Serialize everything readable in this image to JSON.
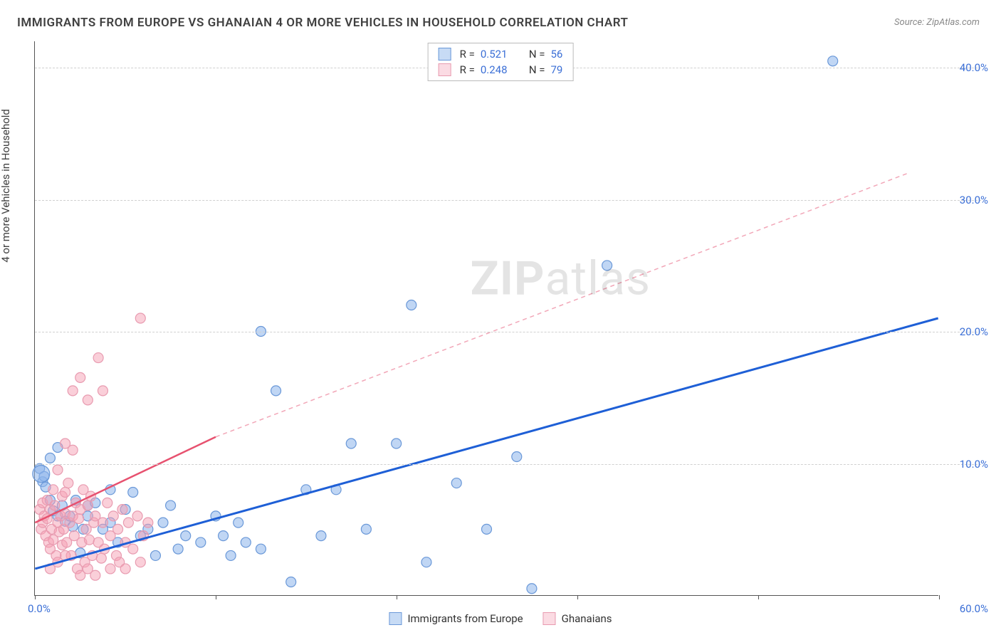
{
  "chart": {
    "title": "IMMIGRANTS FROM EUROPE VS GHANAIAN 4 OR MORE VEHICLES IN HOUSEHOLD CORRELATION CHART",
    "source": "Source: ZipAtlas.com",
    "y_axis_label": "4 or more Vehicles in Household",
    "watermark_bold": "ZIP",
    "watermark_light": "atlas",
    "type": "scatter",
    "xlim": [
      0,
      60
    ],
    "ylim": [
      0,
      42
    ],
    "x_origin_label": "0.0%",
    "x_max_label": "60.0%",
    "x_ticks": [
      0,
      12,
      24,
      36,
      48,
      60
    ],
    "y_gridlines": [
      {
        "value": 10,
        "label": "10.0%"
      },
      {
        "value": 20,
        "label": "20.0%"
      },
      {
        "value": 30,
        "label": "30.0%"
      },
      {
        "value": 40,
        "label": "40.0%"
      }
    ],
    "grid_color": "#d0d0d0",
    "axis_color": "#555555",
    "tick_label_color": "#3b6fd6",
    "background_color": "#ffffff",
    "title_fontsize": 17,
    "label_fontsize": 15,
    "series": [
      {
        "name": "Immigrants from Europe",
        "label": "Immigrants from Europe",
        "color_fill": "rgba(140,180,235,0.55)",
        "color_stroke": "#6a98d8",
        "swatch_fill": "#c7dbf5",
        "swatch_border": "#6a98d8",
        "marker_r": 7,
        "R": "0.521",
        "N": "56",
        "trend": {
          "x1": 0,
          "y1": 2.0,
          "x2": 60,
          "y2": 21.0,
          "color": "#1e5fd6",
          "width": 3,
          "dash": "none"
        },
        "trend_dash_extension": null,
        "points": [
          [
            0.3,
            9.6
          ],
          [
            0.5,
            8.6
          ],
          [
            0.6,
            9.0
          ],
          [
            0.7,
            8.2
          ],
          [
            1.0,
            7.2
          ],
          [
            1.0,
            10.4
          ],
          [
            1.2,
            6.4
          ],
          [
            1.5,
            6.0
          ],
          [
            1.8,
            6.8
          ],
          [
            2.0,
            5.6
          ],
          [
            2.3,
            6.0
          ],
          [
            2.5,
            5.2
          ],
          [
            2.7,
            7.2
          ],
          [
            3.0,
            3.2
          ],
          [
            3.2,
            5.0
          ],
          [
            3.5,
            6.8
          ],
          [
            3.5,
            6.0
          ],
          [
            4.0,
            7.0
          ],
          [
            4.5,
            5.0
          ],
          [
            5.0,
            8.0
          ],
          [
            5.0,
            5.5
          ],
          [
            5.5,
            4.0
          ],
          [
            6.0,
            6.5
          ],
          [
            6.5,
            7.8
          ],
          [
            7.0,
            4.5
          ],
          [
            7.5,
            5.0
          ],
          [
            8.0,
            3.0
          ],
          [
            8.5,
            5.5
          ],
          [
            9.0,
            6.8
          ],
          [
            9.5,
            3.5
          ],
          [
            10.0,
            4.5
          ],
          [
            11.0,
            4.0
          ],
          [
            12.0,
            6.0
          ],
          [
            12.5,
            4.5
          ],
          [
            13.0,
            3.0
          ],
          [
            13.5,
            5.5
          ],
          [
            14.0,
            4.0
          ],
          [
            15.0,
            3.5
          ],
          [
            15.0,
            20.0
          ],
          [
            16.0,
            15.5
          ],
          [
            17.0,
            1.0
          ],
          [
            18.0,
            8.0
          ],
          [
            19.0,
            4.5
          ],
          [
            20.0,
            8.0
          ],
          [
            21.0,
            11.5
          ],
          [
            22.0,
            5.0
          ],
          [
            24.0,
            11.5
          ],
          [
            25.0,
            22.0
          ],
          [
            26.0,
            2.5
          ],
          [
            28.0,
            8.5
          ],
          [
            30.0,
            5.0
          ],
          [
            32.0,
            10.5
          ],
          [
            33.0,
            0.5
          ],
          [
            38.0,
            25.0
          ],
          [
            1.5,
            11.2
          ],
          [
            53.0,
            40.5
          ]
        ]
      },
      {
        "name": "Ghanaians",
        "label": "Ghanaians",
        "color_fill": "rgba(245,160,180,0.5)",
        "color_stroke": "#e89bb0",
        "swatch_fill": "#fbdbe3",
        "swatch_border": "#e89bb0",
        "marker_r": 7,
        "R": "0.248",
        "N": "79",
        "trend": {
          "x1": 0,
          "y1": 5.5,
          "x2": 12,
          "y2": 12.0,
          "color": "#e7516f",
          "width": 2.5,
          "dash": "none"
        },
        "trend_dash_extension": {
          "x1": 12,
          "y1": 12.0,
          "x2": 58,
          "y2": 32.0,
          "color": "#f2a7b8",
          "width": 1.5,
          "dash": "6,5"
        },
        "points": [
          [
            0.3,
            6.5
          ],
          [
            0.4,
            5.0
          ],
          [
            0.5,
            7.0
          ],
          [
            0.5,
            5.5
          ],
          [
            0.6,
            6.0
          ],
          [
            0.7,
            4.5
          ],
          [
            0.8,
            5.8
          ],
          [
            0.8,
            7.2
          ],
          [
            0.9,
            4.0
          ],
          [
            1.0,
            6.5
          ],
          [
            1.0,
            3.5
          ],
          [
            1.1,
            5.0
          ],
          [
            1.2,
            8.0
          ],
          [
            1.2,
            4.2
          ],
          [
            1.3,
            6.8
          ],
          [
            1.4,
            3.0
          ],
          [
            1.5,
            5.5
          ],
          [
            1.5,
            9.5
          ],
          [
            1.6,
            4.8
          ],
          [
            1.7,
            6.0
          ],
          [
            1.8,
            3.8
          ],
          [
            1.8,
            7.5
          ],
          [
            1.9,
            5.0
          ],
          [
            2.0,
            6.2
          ],
          [
            2.0,
            11.5
          ],
          [
            2.1,
            4.0
          ],
          [
            2.2,
            8.5
          ],
          [
            2.3,
            5.5
          ],
          [
            2.4,
            3.0
          ],
          [
            2.5,
            6.0
          ],
          [
            2.5,
            11.0
          ],
          [
            2.6,
            4.5
          ],
          [
            2.7,
            7.0
          ],
          [
            2.8,
            2.0
          ],
          [
            2.9,
            5.8
          ],
          [
            3.0,
            6.5
          ],
          [
            3.0,
            1.5
          ],
          [
            3.1,
            4.0
          ],
          [
            3.2,
            8.0
          ],
          [
            3.3,
            2.5
          ],
          [
            3.4,
            5.0
          ],
          [
            3.5,
            6.8
          ],
          [
            3.5,
            2.0
          ],
          [
            3.6,
            4.2
          ],
          [
            3.7,
            7.5
          ],
          [
            3.8,
            3.0
          ],
          [
            3.9,
            5.5
          ],
          [
            4.0,
            1.5
          ],
          [
            4.0,
            6.0
          ],
          [
            4.2,
            4.0
          ],
          [
            4.4,
            2.8
          ],
          [
            4.5,
            5.5
          ],
          [
            4.6,
            3.5
          ],
          [
            4.8,
            7.0
          ],
          [
            5.0,
            2.0
          ],
          [
            5.0,
            4.5
          ],
          [
            5.2,
            6.0
          ],
          [
            5.4,
            3.0
          ],
          [
            5.5,
            5.0
          ],
          [
            5.6,
            2.5
          ],
          [
            5.8,
            6.5
          ],
          [
            6.0,
            4.0
          ],
          [
            6.0,
            2.0
          ],
          [
            6.2,
            5.5
          ],
          [
            6.5,
            3.5
          ],
          [
            6.8,
            6.0
          ],
          [
            7.0,
            2.5
          ],
          [
            7.2,
            4.5
          ],
          [
            7.5,
            5.5
          ],
          [
            2.5,
            15.5
          ],
          [
            3.0,
            16.5
          ],
          [
            3.5,
            14.8
          ],
          [
            4.5,
            15.5
          ],
          [
            7.0,
            21.0
          ],
          [
            4.2,
            18.0
          ],
          [
            2.0,
            7.8
          ],
          [
            1.0,
            2.0
          ],
          [
            1.5,
            2.5
          ],
          [
            2.0,
            3.0
          ]
        ]
      }
    ],
    "legend_bottom": [
      {
        "label": "Immigrants from Europe",
        "swatch_fill": "#c7dbf5",
        "swatch_border": "#6a98d8"
      },
      {
        "label": "Ghanaians",
        "swatch_fill": "#fbdbe3",
        "swatch_border": "#e89bb0"
      }
    ]
  }
}
